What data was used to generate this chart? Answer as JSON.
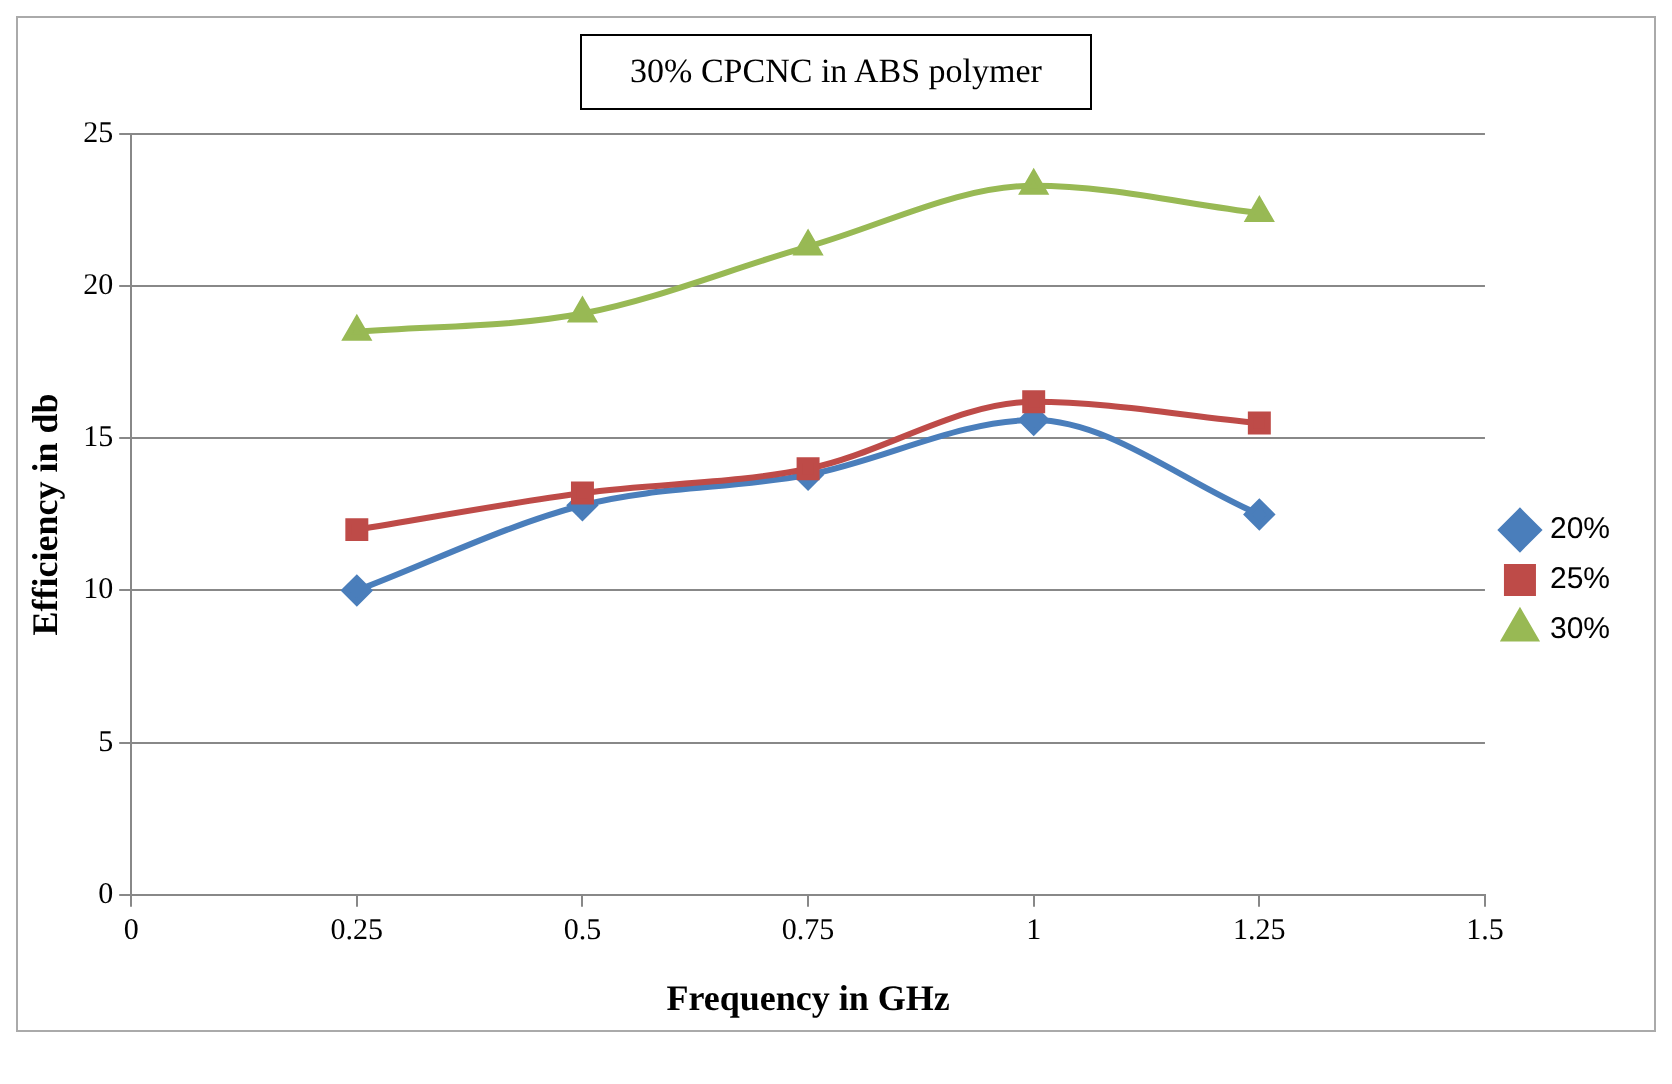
{
  "chart_data": {
    "type": "line",
    "title": "30% CPCNC in ABS polymer",
    "xlabel": "Frequency in GHz",
    "ylabel": "Efficiency in db",
    "x": [
      0.25,
      0.5,
      0.75,
      1,
      1.25
    ],
    "series": [
      {
        "name": "20%",
        "color": "#4a7ebb",
        "marker": "diamond",
        "values": [
          10,
          12.8,
          13.8,
          15.6,
          12.5
        ]
      },
      {
        "name": "25%",
        "color": "#be4b48",
        "marker": "square",
        "values": [
          12,
          13.2,
          14,
          16.2,
          15.5
        ]
      },
      {
        "name": "30%",
        "color": "#98b954",
        "marker": "triangle",
        "values": [
          18.5,
          19.1,
          21.3,
          23.3,
          22.4
        ]
      }
    ],
    "xlim": [
      0,
      1.5
    ],
    "xticks": [
      0,
      0.25,
      0.5,
      0.75,
      1,
      1.25,
      1.5
    ],
    "ylim": [
      0,
      25
    ],
    "yticks": [
      0,
      5,
      10,
      15,
      20,
      25
    ],
    "grid": "y",
    "legend": "right",
    "line_style": "solid"
  }
}
